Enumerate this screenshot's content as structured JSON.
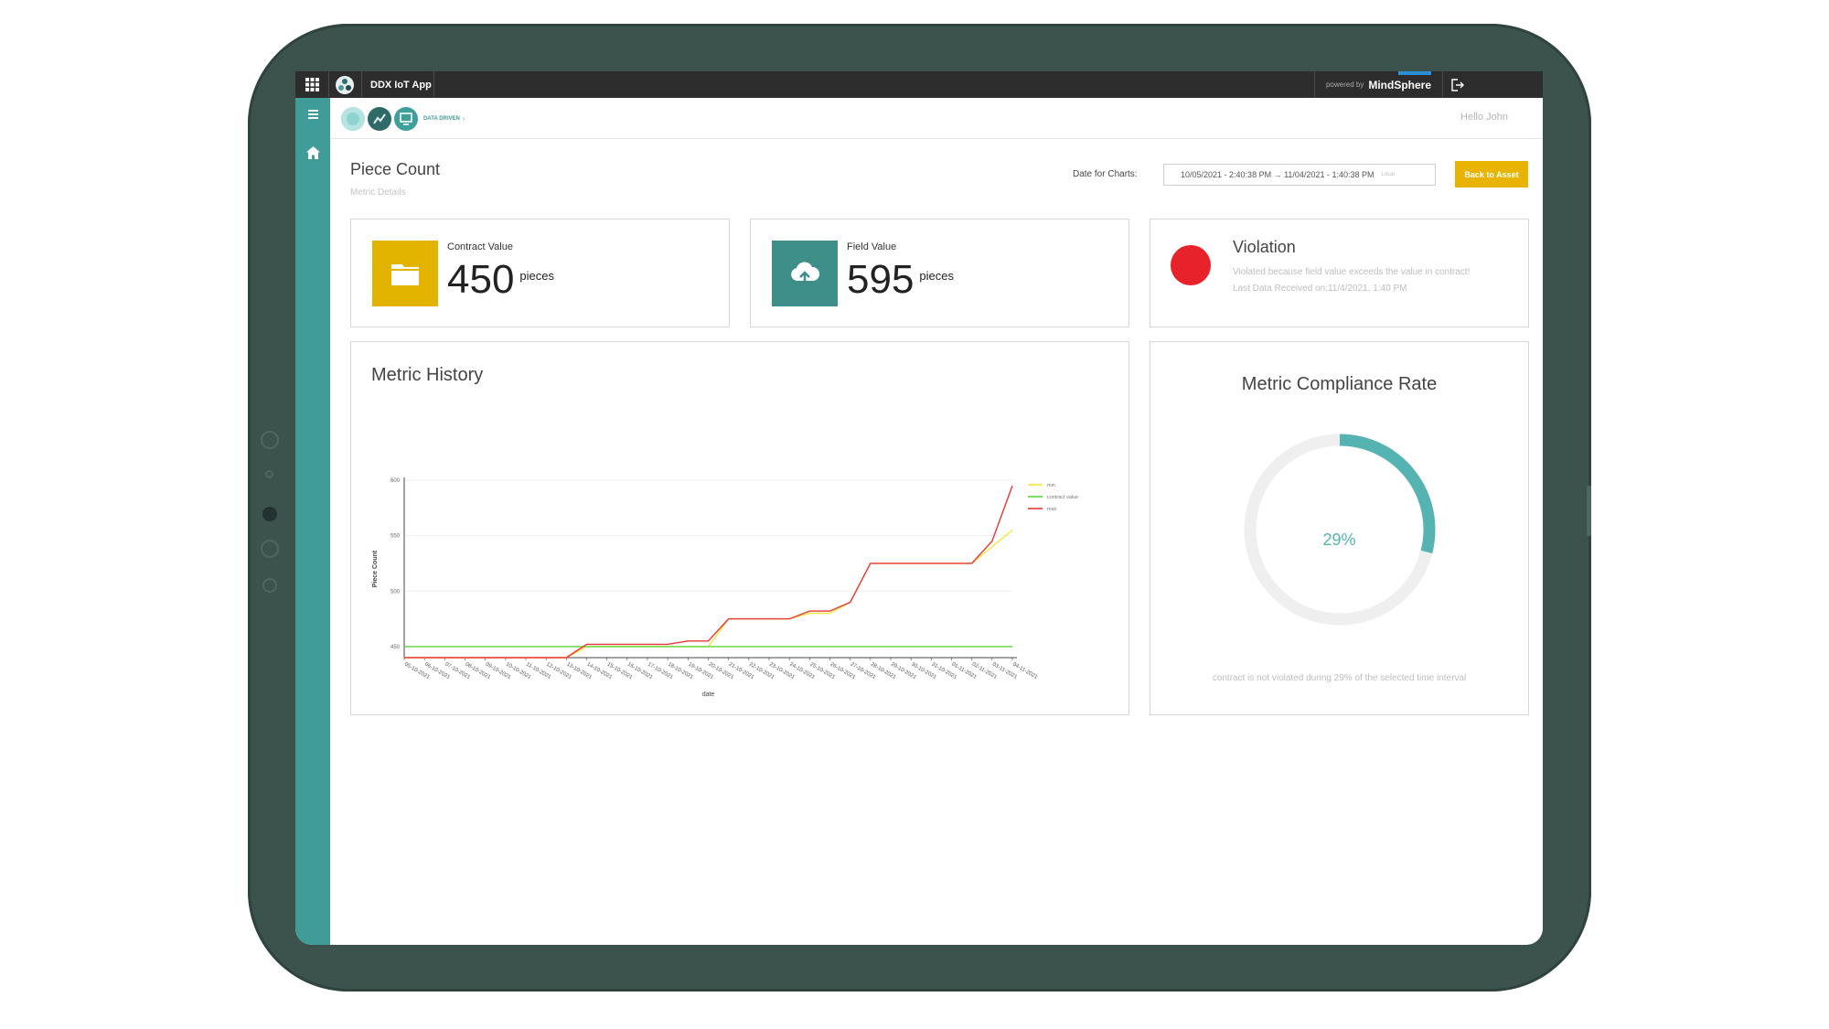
{
  "topbar": {
    "app_title": "DDX IoT App",
    "powered_by": "powered by",
    "brand": "MindSphere"
  },
  "subheader": {
    "breadcrumb": "DATA DRIVEN",
    "greeting": "Hello John"
  },
  "page": {
    "title": "Piece Count",
    "subtitle": "Metric Details",
    "date_label": "Date for Charts:",
    "date_range": "10/05/2021 - 2:40:38 PM → 11/04/2021 - 1:40:38 PM",
    "date_tz": "Local",
    "back_button": "Back to Asset"
  },
  "kpis": {
    "contract": {
      "label": "Contract Value",
      "value": "450",
      "unit": "pieces",
      "color": "#e2b400"
    },
    "field": {
      "label": "Field Value",
      "value": "595",
      "unit": "pieces",
      "color": "#3e8f8a"
    },
    "violation": {
      "title": "Violation",
      "line1": "Violated because field value exceeds the value in contract!",
      "line2": "Last Data Received on:11/4/2021, 1:40 PM",
      "color": "#e8222b"
    }
  },
  "history": {
    "title": "Metric History"
  },
  "compliance": {
    "title": "Metric Compliance Rate",
    "value_label": "29%",
    "value": 29,
    "note": "contract is not violated during 29% of the selected time interval",
    "color": "#55b3b1",
    "track_color": "#efefef"
  },
  "chart_data": {
    "type": "line",
    "xlabel": "date",
    "ylabel": "Piece Count",
    "ylim": [
      440,
      600
    ],
    "yticks": [
      450,
      500,
      550,
      600
    ],
    "x": [
      "05-10-2021",
      "06-10-2021",
      "07-10-2021",
      "08-10-2021",
      "09-10-2021",
      "10-10-2021",
      "11-10-2021",
      "12-10-2021",
      "13-10-2021",
      "14-10-2021",
      "15-10-2021",
      "16-10-2021",
      "17-10-2021",
      "18-10-2021",
      "19-10-2021",
      "20-10-2021",
      "21-10-2021",
      "22-10-2021",
      "23-10-2021",
      "24-10-2021",
      "25-10-2021",
      "26-10-2021",
      "27-10-2021",
      "28-10-2021",
      "29-10-2021",
      "30-10-2021",
      "31-10-2021",
      "01-11-2021",
      "02-11-2021",
      "03-11-2021",
      "04-11-2021"
    ],
    "series": [
      {
        "name": "min",
        "color": "#f5e642",
        "values": [
          440,
          440,
          440,
          440,
          440,
          440,
          440,
          440,
          440,
          450,
          450,
          450,
          450,
          450,
          450,
          450,
          475,
          475,
          475,
          475,
          480,
          480,
          490,
          525,
          525,
          525,
          525,
          525,
          525,
          540,
          555
        ]
      },
      {
        "name": "contract value",
        "color": "#5cd63a",
        "values": [
          450,
          450,
          450,
          450,
          450,
          450,
          450,
          450,
          450,
          450,
          450,
          450,
          450,
          450,
          450,
          450,
          450,
          450,
          450,
          450,
          450,
          450,
          450,
          450,
          450,
          450,
          450,
          450,
          450,
          450,
          450
        ]
      },
      {
        "name": "max",
        "color": "#e83838",
        "values": [
          440,
          440,
          440,
          440,
          440,
          440,
          440,
          440,
          440,
          452,
          452,
          452,
          452,
          452,
          455,
          455,
          475,
          475,
          475,
          475,
          482,
          482,
          490,
          525,
          525,
          525,
          525,
          525,
          525,
          545,
          595
        ]
      }
    ],
    "grid": true,
    "legend": "top-right"
  }
}
